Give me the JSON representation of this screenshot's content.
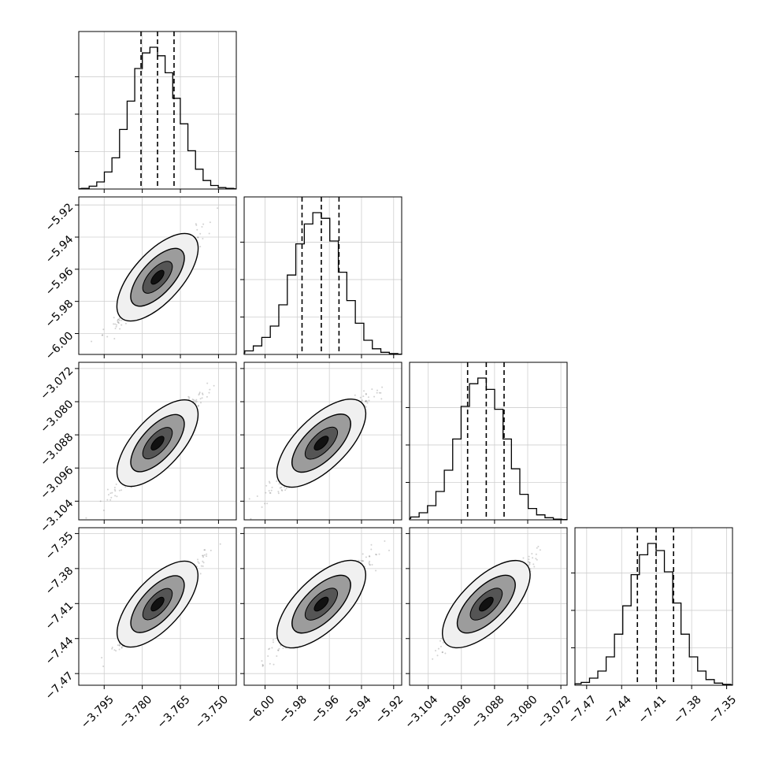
{
  "chart_data": {
    "type": "corner",
    "title": "",
    "parameters": [
      {
        "label": "",
        "range": [
          -3.805,
          -3.743
        ],
        "ticks": [
          -3.795,
          -3.78,
          -3.765,
          -3.75
        ],
        "tick_labels": [
          "−3.795",
          "−3.780",
          "−3.765",
          "−3.750"
        ],
        "quantiles": [
          -3.7805,
          -3.774,
          -3.7675
        ],
        "hist": [
          0.005,
          0.02,
          0.05,
          0.12,
          0.22,
          0.42,
          0.62,
          0.85,
          0.96,
          1.0,
          0.94,
          0.82,
          0.64,
          0.46,
          0.27,
          0.14,
          0.06,
          0.025,
          0.01,
          0.005
        ]
      },
      {
        "label": "",
        "range": [
          -6.013,
          -5.915
        ],
        "ticks": [
          -6.0,
          -5.98,
          -5.96,
          -5.94,
          -5.92
        ],
        "tick_labels": [
          "−6.00",
          "−5.98",
          "−5.96",
          "−5.94",
          "−5.92"
        ],
        "quantiles": [
          -5.977,
          -5.965,
          -5.954
        ],
        "hist": [
          0.01,
          0.025,
          0.06,
          0.12,
          0.2,
          0.35,
          0.56,
          0.78,
          0.92,
          1.0,
          0.96,
          0.8,
          0.58,
          0.38,
          0.22,
          0.1,
          0.04,
          0.015,
          0.006,
          0.002
        ]
      },
      {
        "label": "",
        "range": [
          -3.1085,
          -3.0705
        ],
        "ticks": [
          -3.104,
          -3.096,
          -3.088,
          -3.08,
          -3.072
        ],
        "tick_labels": [
          "−3.104",
          "−3.096",
          "−3.088",
          "−3.080",
          "−3.072"
        ],
        "quantiles": [
          -3.0945,
          -3.09,
          -3.0857
        ],
        "hist": [
          0.01,
          0.02,
          0.05,
          0.1,
          0.2,
          0.35,
          0.57,
          0.8,
          0.96,
          1.0,
          0.92,
          0.78,
          0.57,
          0.36,
          0.18,
          0.08,
          0.035,
          0.015,
          0.005,
          0.002
        ]
      },
      {
        "label": "",
        "range": [
          -7.48,
          -7.345
        ],
        "ticks": [
          -7.47,
          -7.44,
          -7.41,
          -7.38,
          -7.35
        ],
        "tick_labels": [
          "−7.47",
          "−7.44",
          "−7.41",
          "−7.38",
          "−7.35"
        ],
        "quantiles": [
          -7.4265,
          -7.4105,
          -7.3955
        ],
        "hist": [
          0.01,
          0.02,
          0.05,
          0.1,
          0.2,
          0.36,
          0.56,
          0.78,
          0.92,
          1.0,
          0.95,
          0.8,
          0.58,
          0.36,
          0.2,
          0.1,
          0.04,
          0.015,
          0.006,
          0.002
        ]
      }
    ],
    "hist_yticks_relative": [
      0.27,
      0.54,
      0.81
    ],
    "contour_fills": [
      "#f0f0f0",
      "#9c9c9c",
      "#555555",
      "#111111"
    ],
    "scatter_color": "#333333",
    "grid": true
  }
}
